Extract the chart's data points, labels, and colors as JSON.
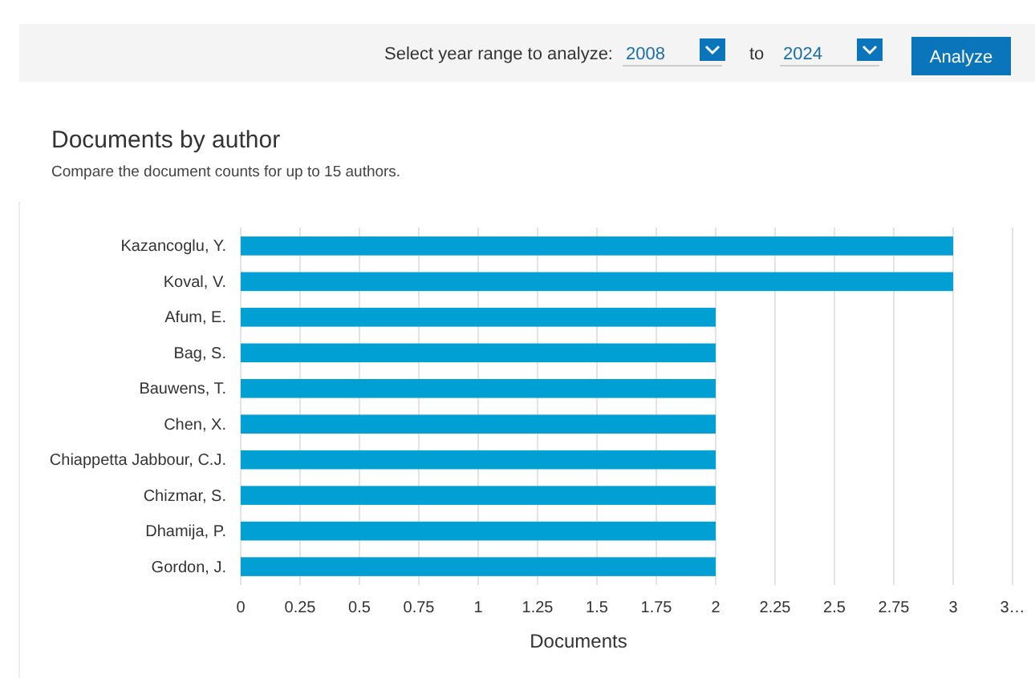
{
  "chart_data": {
    "type": "bar",
    "orientation": "horizontal",
    "title": "Documents by author",
    "subtitle": "Compare the document counts for up to 15 authors.",
    "xlabel": "Documents",
    "categories": [
      "Kazancoglu, Y.",
      "Koval, V.",
      "Afum, E.",
      "Bag, S.",
      "Bauwens, T.",
      "Chen, X.",
      "Chiappetta Jabbour, C.J.",
      "Chizmar, S.",
      "Dhamija, P.",
      "Gordon, J."
    ],
    "values": [
      3,
      3,
      2,
      2,
      2,
      2,
      2,
      2,
      2,
      2
    ],
    "color": "#009fd4",
    "xlim": [
      0,
      3.25
    ],
    "xticks": [
      0,
      0.25,
      0.5,
      0.75,
      1,
      1.25,
      1.5,
      1.75,
      2,
      2.25,
      2.5,
      2.75,
      3,
      {
        "value": 3.25,
        "label": "3…"
      }
    ],
    "grid": "x",
    "annotations": [
      "Select year range to analyze:",
      "2008",
      "to",
      "2024",
      "Analyze"
    ]
  }
}
